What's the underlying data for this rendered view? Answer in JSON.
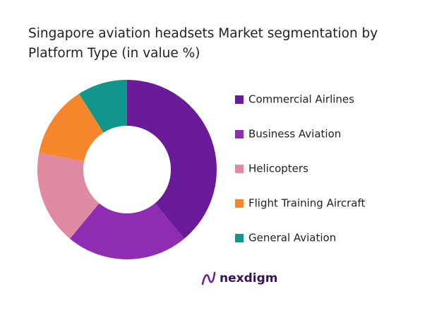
{
  "chart_data": {
    "type": "donut",
    "title": "Singapore aviation headsets Market segmentation by Platform Type (in value %)",
    "categories": [
      "Commercial Airlines",
      "Business Aviation",
      "Helicopters",
      "Flight Training Aircraft",
      "General Aviation"
    ],
    "values": [
      39,
      22,
      17,
      13,
      9
    ],
    "colors": [
      "#6a1b9a",
      "#8e2cb3",
      "#e08aa2",
      "#f5862b",
      "#10968a"
    ]
  },
  "logo": {
    "text": "nexdigm"
  }
}
